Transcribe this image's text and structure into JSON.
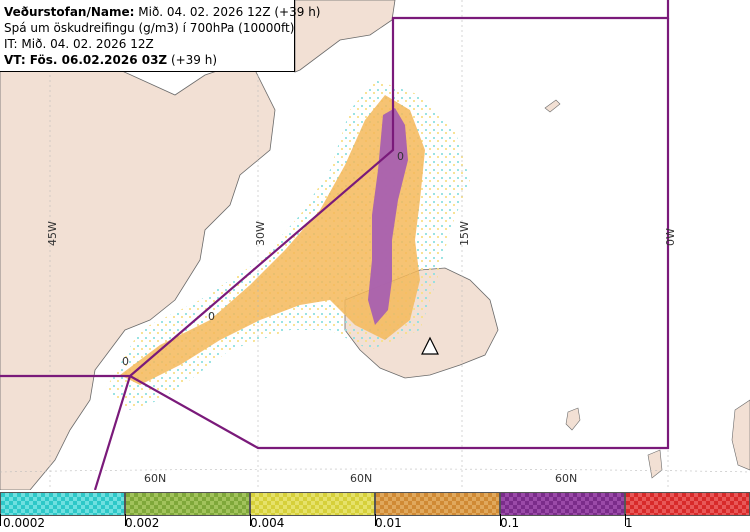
{
  "header": {
    "agency_label": "Veðurstofan/Name:",
    "agency_value": "Mið. 04. 02. 2026 12Z (+39 h)",
    "product": "Spá um öskudreifingu (g/m3) í 700hPa (10000ft)",
    "issue_time": "IT: Mið. 04. 02. 2026 12Z",
    "valid_label": "VT: Fös. 06.02.2026 03Z",
    "valid_suffix": " (+39 h)"
  },
  "map": {
    "longitude_labels": [
      "45W",
      "30W",
      "15W",
      "0W"
    ],
    "latitude_labels": [
      "60N",
      "60N",
      "60N"
    ],
    "contour_labels": [
      "0",
      "0",
      "0"
    ],
    "colors": {
      "land": "#f2e0d4",
      "sea": "#ffffff",
      "boundary": "#7a1a7a",
      "ash_low": "#f7e08a",
      "ash_mid": "#f5b95a",
      "ash_high": "#a860b0"
    }
  },
  "legend": {
    "segments": [
      {
        "color": "#2ec8c8",
        "pattern": "#6fe0e0"
      },
      {
        "color": "#7fa83a",
        "pattern": "#a2c35c"
      },
      {
        "color": "#d6d03a",
        "pattern": "#e6e26a"
      },
      {
        "color": "#d08a34",
        "pattern": "#e0a85c"
      },
      {
        "color": "#7a2c8a",
        "pattern": "#9a4aa8"
      },
      {
        "color": "#d82a2a",
        "pattern": "#e85858"
      }
    ],
    "tick_labels": [
      "0.0002",
      "0.002",
      "0.004",
      "0.01",
      "0.1",
      "1"
    ]
  }
}
